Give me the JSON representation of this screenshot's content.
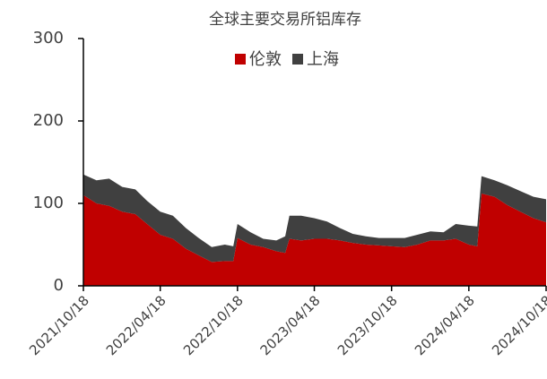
{
  "chart_data": {
    "type": "stacked_area",
    "title": "全球主要交易所铝库存",
    "x": [
      "2021/10/18",
      "2021/11/18",
      "2021/12/18",
      "2022/01/18",
      "2022/02/18",
      "2022/03/18",
      "2022/04/18",
      "2022/05/18",
      "2022/06/18",
      "2022/07/18",
      "2022/08/18",
      "2022/09/18",
      "2022/10/08",
      "2022/10/18",
      "2022/11/18",
      "2022/12/18",
      "2023/01/18",
      "2023/02/08",
      "2023/02/18",
      "2023/03/18",
      "2023/04/18",
      "2023/05/18",
      "2023/06/18",
      "2023/07/18",
      "2023/08/18",
      "2023/09/18",
      "2023/10/18",
      "2023/11/18",
      "2023/12/18",
      "2024/01/18",
      "2024/02/18",
      "2024/03/18",
      "2024/04/18",
      "2024/05/08",
      "2024/05/18",
      "2024/06/18",
      "2024/07/18",
      "2024/08/18",
      "2024/09/18",
      "2024/10/18"
    ],
    "series": [
      {
        "name": "伦敦",
        "color": "#c00000",
        "values": [
          110,
          100,
          97,
          90,
          87,
          75,
          62,
          57,
          45,
          37,
          29,
          30,
          30,
          58,
          50,
          47,
          42,
          40,
          57,
          55,
          57,
          57,
          55,
          52,
          50,
          49,
          48,
          47,
          50,
          55,
          55,
          57,
          50,
          48,
          112,
          108,
          98,
          90,
          82,
          77
        ]
      },
      {
        "name": "上海",
        "color": "#404040",
        "values": [
          25,
          28,
          33,
          30,
          30,
          28,
          28,
          28,
          25,
          21,
          18,
          20,
          18,
          17,
          15,
          10,
          13,
          20,
          28,
          30,
          25,
          21,
          15,
          11,
          10,
          9,
          10,
          11,
          12,
          11,
          10,
          18,
          23,
          24,
          21,
          20,
          24,
          25,
          26,
          28
        ]
      }
    ],
    "xlim": [
      "2021/10/18",
      "2024/10/18"
    ],
    "xticks": [
      "2021/10/18",
      "2022/04/18",
      "2022/10/18",
      "2023/04/18",
      "2023/10/18",
      "2024/04/18",
      "2024/10/18"
    ],
    "ylim": [
      0,
      300
    ],
    "yticks": [
      0,
      100,
      200,
      300
    ],
    "legend": "top"
  }
}
